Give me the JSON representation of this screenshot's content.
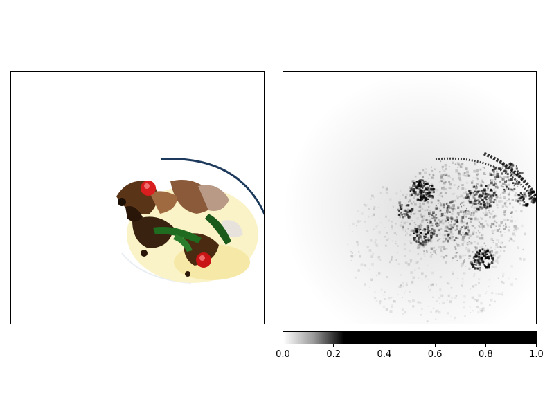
{
  "chart_data": [
    {
      "type": "image",
      "panel": "left",
      "content": "photo of a plated dish (meat, red peppers, green vegetables, sauce) on a white plate, high-contrast"
    },
    {
      "type": "heatmap",
      "panel": "right",
      "colormap": "gray_r",
      "content": "grayscale saliency map; dark speckled activations around the dish region and plate rim",
      "colorbar": {
        "orientation": "horizontal",
        "range": [
          0.0,
          1.0
        ],
        "ticks": [
          0.0,
          0.2,
          0.4,
          0.6,
          0.8,
          1.0
        ],
        "tick_labels": [
          "0.0",
          "0.2",
          "0.4",
          "0.6",
          "0.8",
          "1.0"
        ],
        "saturation_point": 0.24
      }
    }
  ],
  "colors": {
    "plate_rim": "#1d3a5c",
    "sauce": "#f4e7a0",
    "meat_dark": "#3a2210",
    "meat_light": "#8a5a3a",
    "pepper_red": "#d81e1e",
    "greens": "#1f6b1f"
  }
}
